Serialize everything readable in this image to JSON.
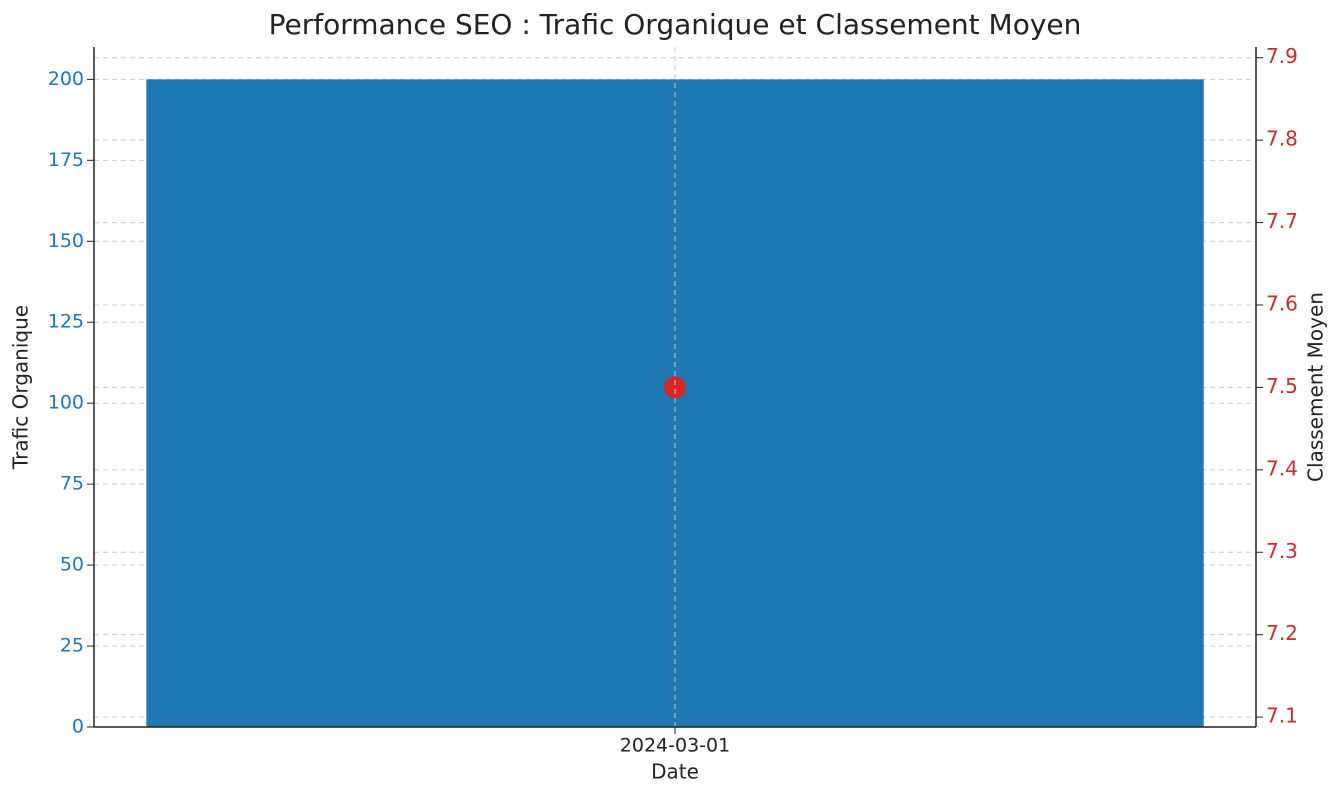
{
  "chart_data": {
    "type": "bar",
    "title": "Performance SEO : Trafic Organique et Classement Moyen",
    "xlabel": "Date",
    "ylabel": "Trafic Organique",
    "y2label": "Classement Moyen",
    "categories": [
      "2024-03-01"
    ],
    "series": [
      {
        "color": "#1f77b4",
        "values": [
          200
        ]
      },
      {
        "color": "#d62728",
        "values": [
          7.5
        ],
        "axis": "y2",
        "type": "scatter"
      }
    ],
    "ylim": [
      0,
      210
    ],
    "yticks": [
      0,
      25,
      50,
      75,
      100,
      125,
      150,
      175,
      200
    ],
    "y2lim": [
      7.088,
      7.913
    ],
    "y2ticks": [
      7.1,
      7.2,
      7.3,
      7.4,
      7.5,
      7.6,
      7.7,
      7.8,
      7.9
    ],
    "grid": true
  }
}
